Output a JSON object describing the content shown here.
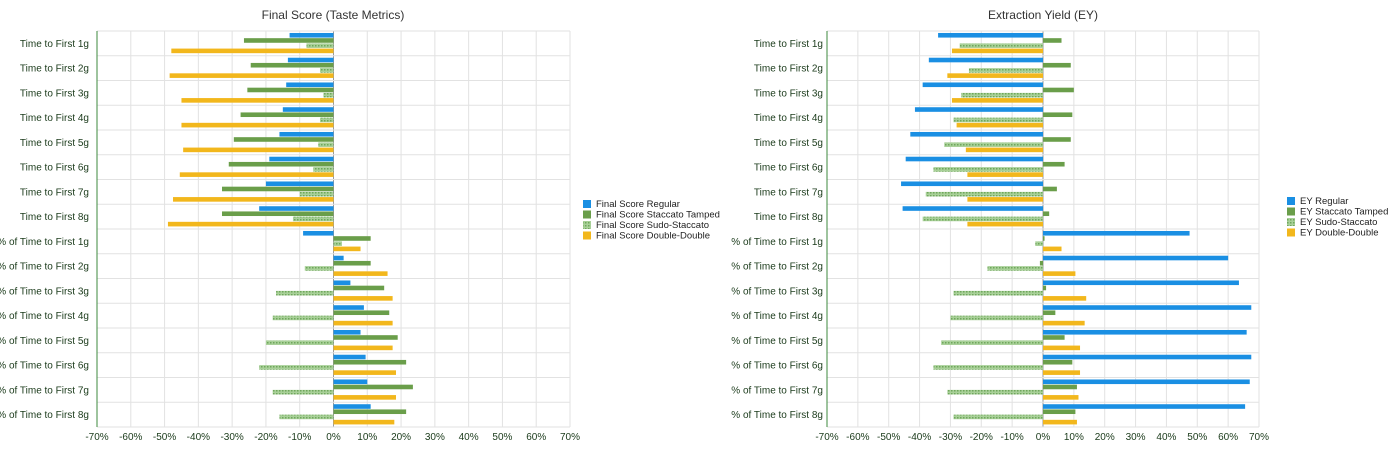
{
  "chart_data": [
    {
      "type": "bar",
      "orientation": "horizontal",
      "title": "Final Score (Taste Metrics)",
      "categories": [
        "Time to First 1g",
        "Time to First 2g",
        "Time to First 3g",
        "Time to First 4g",
        "Time to First 5g",
        "Time to First 6g",
        "Time to First 7g",
        "Time to First 8g",
        "% of Time to First 1g",
        "% of Time to First 2g",
        "% of Time to First 3g",
        "% of Time to First 4g",
        "% of Time to First 5g",
        "% of Time to First 6g",
        "% of Time to First 7g",
        "% of Time to First 8g"
      ],
      "xlim": [
        -70,
        70
      ],
      "x_ticks": [
        "-70%",
        "-60%",
        "-50%",
        "-40%",
        "-30%",
        "-20%",
        "-10%",
        "0%",
        "10%",
        "20%",
        "30%",
        "40%",
        "50%",
        "60%",
        "70%"
      ],
      "legend_position": "right",
      "grid": true,
      "series": [
        {
          "name": "Final Score Regular",
          "color": "#1a8fe3",
          "pattern": "solid",
          "values": [
            -13,
            -13.5,
            -14,
            -15,
            -16,
            -19,
            -20,
            -22,
            -9,
            3,
            5,
            9,
            8,
            9.5,
            10,
            11
          ]
        },
        {
          "name": "Final Score Staccato Tamped",
          "color": "#6a9e4a",
          "pattern": "solid",
          "values": [
            -26.5,
            -24.5,
            -25.5,
            -27.5,
            -29.5,
            -31,
            -33,
            -33,
            11,
            11,
            15,
            16.5,
            19,
            21.5,
            23.5,
            21.5
          ]
        },
        {
          "name": "Final Score Sudo-Staccato",
          "color": "#8cbf7a",
          "pattern": "dotted",
          "values": [
            -8,
            -4,
            -3,
            -4,
            -4.5,
            -6,
            -10,
            -12,
            2.5,
            -8.5,
            -17,
            -18,
            -20,
            -22,
            -18,
            -16
          ]
        },
        {
          "name": "Final Score Double-Double",
          "color": "#f2b71c",
          "pattern": "solid",
          "values": [
            -48,
            -48.5,
            -45,
            -45,
            -44.5,
            -45.5,
            -47.5,
            -49,
            8,
            16,
            17.5,
            17.5,
            17.5,
            18.5,
            18.5,
            18
          ]
        }
      ]
    },
    {
      "type": "bar",
      "orientation": "horizontal",
      "title": "Extraction Yield (EY)",
      "categories": [
        "Time to First 1g",
        "Time to First 2g",
        "Time to First 3g",
        "Time to First 4g",
        "Time to First 5g",
        "Time to First 6g",
        "Time to First 7g",
        "Time to First 8g",
        "% of Time to First 1g",
        "% of Time to First 2g",
        "% of Time to First 3g",
        "% of Time to First 4g",
        "% of Time to First 5g",
        "% of Time to First 6g",
        "% of Time to First 7g",
        "% of Time to First 8g"
      ],
      "xlim": [
        -70,
        70
      ],
      "x_ticks": [
        "-70%",
        "-60%",
        "-50%",
        "-40%",
        "-30%",
        "-20%",
        "-10%",
        "0%",
        "10%",
        "20%",
        "30%",
        "40%",
        "50%",
        "60%",
        "70%"
      ],
      "legend_position": "right",
      "grid": true,
      "series": [
        {
          "name": "EY Regular",
          "color": "#1a8fe3",
          "pattern": "solid",
          "values": [
            -34,
            -37,
            -39,
            -41.5,
            -43,
            -44.5,
            -46,
            -45.5,
            47.5,
            60,
            63.5,
            67.5,
            66,
            67.5,
            67,
            65.5
          ]
        },
        {
          "name": "EY Staccato Tamped",
          "color": "#6a9e4a",
          "pattern": "solid",
          "values": [
            6,
            9,
            10,
            9.5,
            9,
            7,
            4.5,
            2,
            0.5,
            -1,
            1,
            4,
            7,
            9.5,
            11,
            10.5
          ]
        },
        {
          "name": "EY Sudo-Staccato",
          "color": "#8cbf7a",
          "pattern": "dotted",
          "values": [
            -27,
            -24,
            -26.5,
            -29,
            -32,
            -35.5,
            -38,
            -39,
            -2.5,
            -18,
            -29,
            -30,
            -33,
            -35.5,
            -31,
            -29
          ]
        },
        {
          "name": "EY Double-Double",
          "color": "#f2b71c",
          "pattern": "solid",
          "values": [
            -29.5,
            -31,
            -29.5,
            -28,
            -25,
            -24.5,
            -24.5,
            -24.5,
            6,
            10.5,
            14,
            13.5,
            12,
            12,
            11.5,
            11
          ]
        }
      ]
    }
  ]
}
